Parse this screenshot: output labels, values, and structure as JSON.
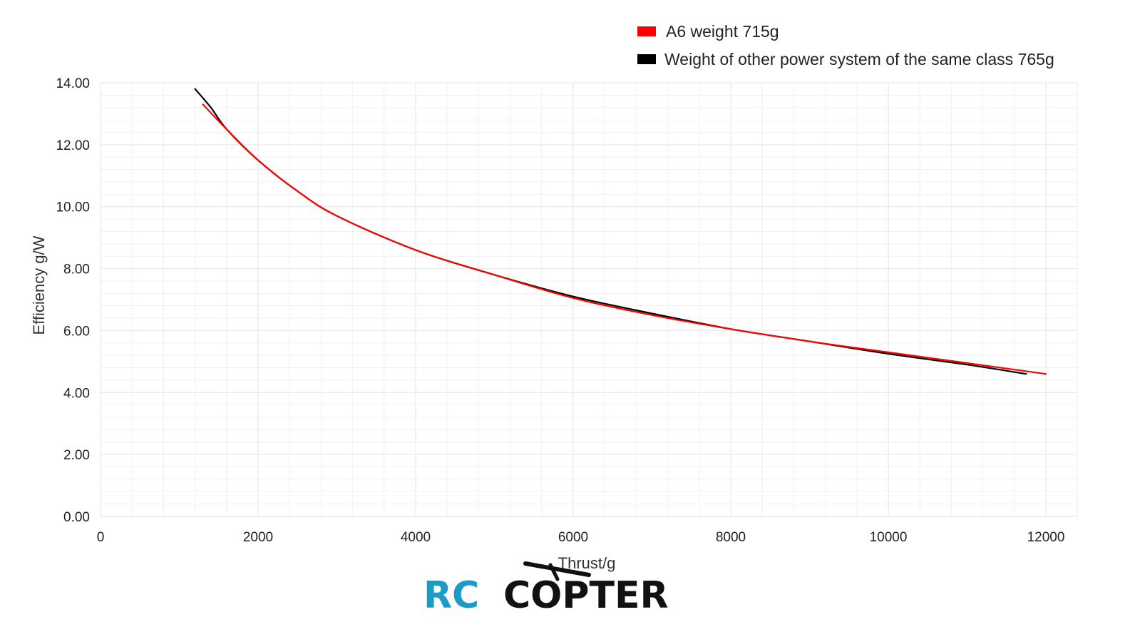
{
  "chart_data": {
    "type": "line",
    "title": "",
    "xlabel": "Thrust/g",
    "ylabel": "Efficiency g/W",
    "xlim": [
      0,
      12500
    ],
    "ylim": [
      0,
      14
    ],
    "x_ticks": [
      0,
      2000,
      4000,
      6000,
      8000,
      10000,
      12000
    ],
    "x_tick_labels": [
      "0",
      "2000",
      "4000",
      "6000",
      "8000",
      "10000",
      "12000"
    ],
    "y_ticks": [
      0,
      2,
      4,
      6,
      8,
      10,
      12,
      14
    ],
    "y_tick_labels": [
      "0.00",
      "2.00",
      "4.00",
      "6.00",
      "8.00",
      "10.00",
      "12.00",
      "14.00"
    ],
    "grid": true,
    "legend_position": "top-right",
    "series": [
      {
        "name": "A6 weight 715g",
        "color": "#ff0000",
        "x": [
          1300,
          1600,
          2000,
          2500,
          3000,
          4000,
          5000,
          6000,
          7000,
          8000,
          9000,
          10000,
          11000,
          12000
        ],
        "y": [
          13.3,
          12.5,
          11.5,
          10.5,
          9.7,
          8.6,
          7.8,
          7.05,
          6.5,
          6.05,
          5.65,
          5.3,
          4.95,
          4.6
        ]
      },
      {
        "name": "Weight of other power system of the same class 765g",
        "color": "#000000",
        "x": [
          1200,
          1400,
          1600,
          2000,
          2500,
          3000,
          4000,
          5000,
          6000,
          7000,
          8000,
          9000,
          10000,
          11000,
          11750
        ],
        "y": [
          13.8,
          13.2,
          12.5,
          11.5,
          10.5,
          9.7,
          8.6,
          7.8,
          7.1,
          6.55,
          6.05,
          5.65,
          5.25,
          4.9,
          4.6
        ]
      }
    ]
  },
  "watermark": {
    "part1": "RC",
    "part2": "COPTER",
    "color1": "#1a9bc8",
    "color2": "#111111"
  }
}
